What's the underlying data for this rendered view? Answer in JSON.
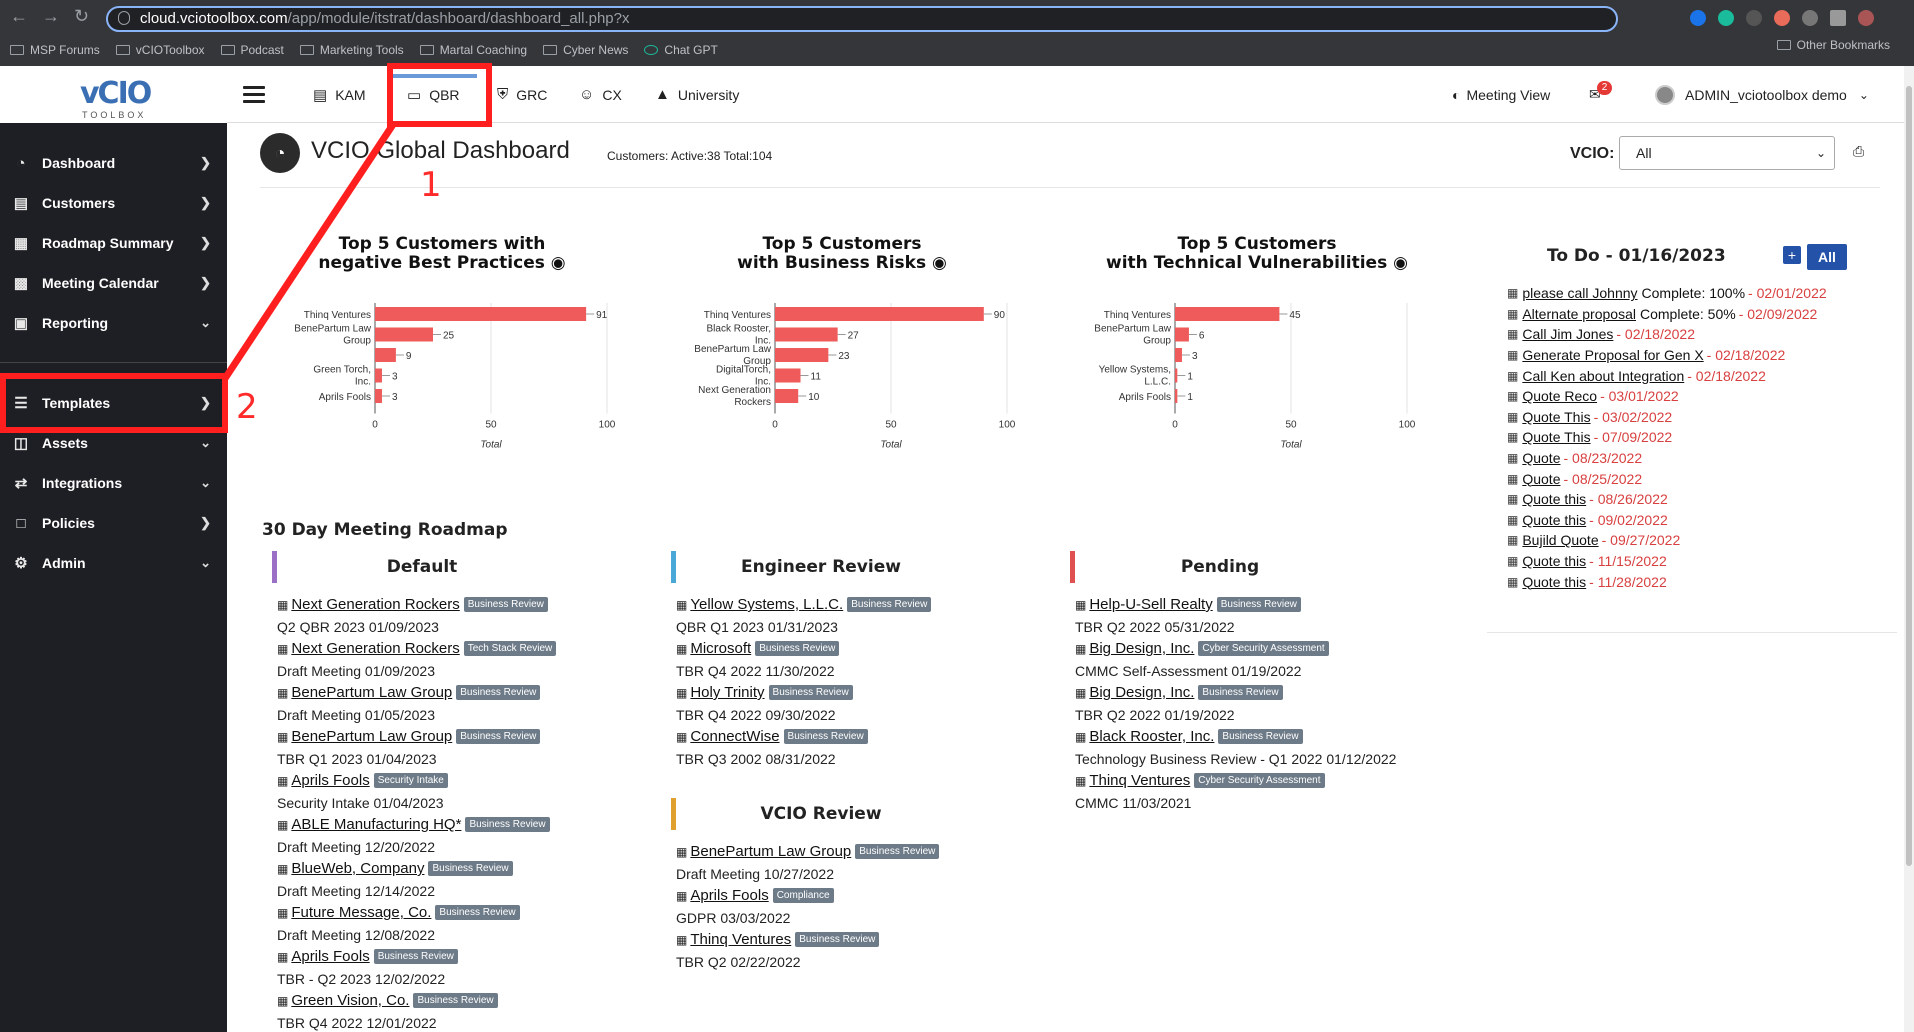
{
  "browser": {
    "url_host": "cloud.vciotoolbox.com",
    "url_path": "/app/module/itstrat/dashboard/dashboard_all.php?x",
    "bookmarks": [
      "MSP Forums",
      "vCIOToolbox",
      "Podcast",
      "Marketing Tools",
      "Martal Coaching",
      "Cyber News",
      "Chat GPT"
    ],
    "other_bookmarks": "Other Bookmarks"
  },
  "logo": {
    "text": "vCIO",
    "sub": "TOOLBOX"
  },
  "sidebar": {
    "items": [
      {
        "label": "Dashboard",
        "icon": "dashboard-icon"
      },
      {
        "label": "Customers",
        "icon": "customers-icon"
      },
      {
        "label": "Roadmap Summary",
        "icon": "map-icon"
      },
      {
        "label": "Meeting Calendar",
        "icon": "calendar-icon"
      },
      {
        "label": "Reporting",
        "icon": "reporting-icon"
      },
      {
        "label": "Templates",
        "icon": "templates-icon"
      },
      {
        "label": "Assets",
        "icon": "assets-icon"
      },
      {
        "label": "Integrations",
        "icon": "integrations-icon"
      },
      {
        "label": "Policies",
        "icon": "policies-icon"
      },
      {
        "label": "Admin",
        "icon": "admin-icon"
      }
    ]
  },
  "topnav": {
    "tabs": [
      "KAM",
      "QBR",
      "GRC",
      "CX",
      "University"
    ],
    "meeting_view": "Meeting View",
    "mail_count": "2",
    "user": "ADMIN_vciotoolbox demo"
  },
  "page": {
    "title": "VCIO Global Dashboard",
    "customers": "Customers: Active:38  Total:104",
    "vcio_label": "VCIO:",
    "vcio_value": "All"
  },
  "chart_data": [
    {
      "type": "bar",
      "title_line1": "Top 5 Customers with",
      "title_line2": "negative Best Practices",
      "categories": [
        "Thinq Ventures",
        "BenePartum Law Group",
        "",
        "Green Torch, Inc.",
        "Aprils Fools"
      ],
      "values": [
        91,
        25,
        9,
        3,
        3
      ],
      "xlabel": "Total",
      "xlim": [
        0,
        100
      ],
      "ticks": [
        0,
        50,
        100
      ],
      "color": "#ef5a5a"
    },
    {
      "type": "bar",
      "title_line1": "Top 5 Customers",
      "title_line2": "with Business Risks",
      "categories": [
        "Thinq Ventures",
        "Black Rooster, Inc.",
        "BenePartum Law Group",
        "DigitalTorch, Inc.",
        "Next Generation Rockers"
      ],
      "values": [
        90,
        27,
        23,
        11,
        10
      ],
      "xlabel": "Total",
      "xlim": [
        0,
        100
      ],
      "ticks": [
        0,
        50,
        100
      ],
      "color": "#ef5a5a"
    },
    {
      "type": "bar",
      "title_line1": "Top 5 Customers",
      "title_line2": "with Technical Vulnerabilities",
      "categories": [
        "Thinq Ventures",
        "BenePartum Law Group",
        "",
        "Yellow Systems, L.L.C.",
        "Aprils Fools"
      ],
      "values": [
        45,
        6,
        3,
        1,
        1
      ],
      "xlabel": "Total",
      "xlim": [
        0,
        100
      ],
      "ticks": [
        0,
        50,
        100
      ],
      "color": "#ef5a5a"
    }
  ],
  "todo": {
    "title": "To Do - 01/16/2023",
    "all_label": "All",
    "add_label": "+",
    "items": [
      {
        "task": "please call Johnny",
        "complete": "Complete: 100%",
        "date": "- 02/01/2022"
      },
      {
        "task": "Alternate proposal",
        "complete": "Complete: 50%",
        "date": "- 02/09/2022"
      },
      {
        "task": "Call Jim Jones",
        "complete": "",
        "date": "- 02/18/2022"
      },
      {
        "task": "Generate Proposal for Gen X",
        "complete": "",
        "date": "- 02/18/2022"
      },
      {
        "task": "Call Ken about Integration",
        "complete": "",
        "date": "- 02/18/2022"
      },
      {
        "task": "Quote Reco",
        "complete": "",
        "date": "- 03/01/2022"
      },
      {
        "task": "Quote This",
        "complete": "",
        "date": "- 03/02/2022"
      },
      {
        "task": "Quote This",
        "complete": "",
        "date": "- 07/09/2022"
      },
      {
        "task": "Quote",
        "complete": "",
        "date": "- 08/23/2022"
      },
      {
        "task": "Quote",
        "complete": "",
        "date": "- 08/25/2022"
      },
      {
        "task": "Quote this",
        "complete": "",
        "date": "- 08/26/2022"
      },
      {
        "task": "Quote this",
        "complete": "",
        "date": "- 09/02/2022"
      },
      {
        "task": "Bujild Quote",
        "complete": "",
        "date": "- 09/27/2022"
      },
      {
        "task": "Quote this",
        "complete": "",
        "date": "- 11/15/2022"
      },
      {
        "task": "Quote this",
        "complete": "",
        "date": "- 11/28/2022"
      }
    ]
  },
  "roadmap": {
    "title": "30 Day Meeting Roadmap",
    "columns": [
      {
        "heading": "Default",
        "color": "#9b6fc5",
        "entries": [
          {
            "name": "Next Generation Rockers",
            "tag": "Business Review",
            "sub": "Q2 QBR 2023 01/09/2023"
          },
          {
            "name": "Next Generation Rockers",
            "tag": "Tech Stack Review",
            "sub": "Draft Meeting 01/09/2023"
          },
          {
            "name": "BenePartum Law Group",
            "tag": "Business Review",
            "sub": "Draft Meeting 01/05/2023"
          },
          {
            "name": "BenePartum Law Group",
            "tag": "Business Review",
            "sub": "TBR Q1 2023 01/04/2023"
          },
          {
            "name": "Aprils Fools",
            "tag": "Security Intake",
            "sub": "Security Intake 01/04/2023"
          },
          {
            "name": "ABLE Manufacturing HQ*",
            "tag": "Business Review",
            "sub": "Draft Meeting 12/20/2022"
          },
          {
            "name": "BlueWeb, Company",
            "tag": "Business Review",
            "sub": "Draft Meeting 12/14/2022"
          },
          {
            "name": "Future Message, Co.",
            "tag": "Business Review",
            "sub": "Draft Meeting 12/08/2022"
          },
          {
            "name": "Aprils Fools",
            "tag": "Business Review",
            "sub": "TBR - Q2 2023 12/02/2022"
          },
          {
            "name": "Green Vision, Co.",
            "tag": "Business Review",
            "sub": "TBR Q4 2022 12/01/2022"
          }
        ]
      },
      {
        "heading": "Engineer Review",
        "color": "#4aa8d8",
        "entries": [
          {
            "name": "Yellow Systems, L.L.C.",
            "tag": "Business Review",
            "sub": "QBR Q1 2023 01/31/2023"
          },
          {
            "name": "Microsoft",
            "tag": "Business Review",
            "sub": "TBR Q4 2022 11/30/2022"
          },
          {
            "name": "Holy Trinity",
            "tag": "Business Review",
            "sub": "TBR Q4 2022 09/30/2022"
          },
          {
            "name": "ConnectWise",
            "tag": "Business Review",
            "sub": "TBR Q3 2002 08/31/2022"
          }
        ]
      },
      {
        "heading": "VCIO Review",
        "color": "#e0a030",
        "entries": [
          {
            "name": "BenePartum Law Group",
            "tag": "Business Review",
            "sub": "Draft Meeting 10/27/2022"
          },
          {
            "name": "Aprils Fools",
            "tag": "Compliance",
            "sub": "GDPR 03/03/2022"
          },
          {
            "name": "Thinq Ventures",
            "tag": "Business Review",
            "sub": "TBR Q2 02/22/2022"
          }
        ]
      },
      {
        "heading": "Pending",
        "color": "#e05050",
        "entries": [
          {
            "name": "Help-U-Sell Realty",
            "tag": "Business Review",
            "sub": "TBR Q2 2022 05/31/2022"
          },
          {
            "name": "Big Design, Inc.",
            "tag": "Cyber Security Assessment",
            "sub": "CMMC Self-Assessment 01/19/2022"
          },
          {
            "name": "Big Design, Inc.",
            "tag": "Business Review",
            "sub": "TBR Q2 2022 01/19/2022"
          },
          {
            "name": "Black Rooster, Inc.",
            "tag": "Business Review",
            "sub": "Technology Business Review - Q1 2022 01/12/2022"
          },
          {
            "name": "Thinq Ventures",
            "tag": "Cyber Security Assessment",
            "sub": "CMMC 11/03/2021"
          }
        ]
      }
    ]
  },
  "annotations": {
    "n1": "1",
    "n2": "2",
    "color": "#ff1f1f"
  }
}
